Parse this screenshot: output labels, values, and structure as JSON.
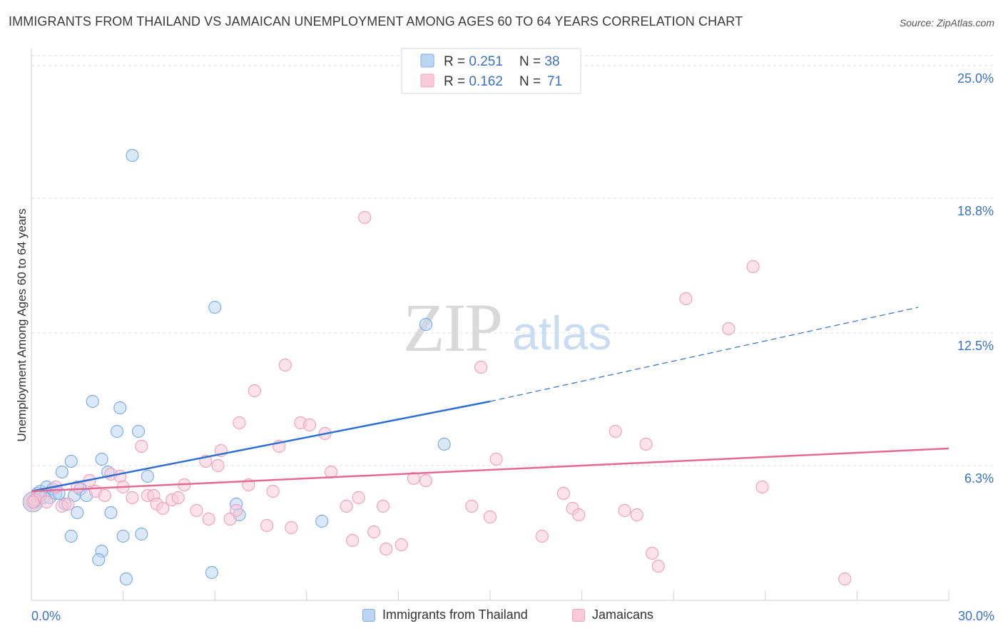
{
  "title": "IMMIGRANTS FROM THAILAND VS JAMAICAN UNEMPLOYMENT AMONG AGES 60 TO 64 YEARS CORRELATION CHART",
  "source": "Source: ZipAtlas.com",
  "watermark": {
    "zip": "ZIP",
    "atlas": "atlas"
  },
  "chart_data": {
    "type": "scatter",
    "xlabel": "",
    "ylabel": "Unemployment Among Ages 60 to 64 years",
    "xlim": [
      0,
      30
    ],
    "ylim": [
      0,
      25.8
    ],
    "x_tick_labels": [
      "0.0%",
      "30.0%"
    ],
    "y_ticks": [
      6.3,
      12.5,
      18.8,
      25.0
    ],
    "y_tick_labels": [
      "6.3%",
      "12.5%",
      "18.8%",
      "25.0%"
    ],
    "legend": {
      "position": "top-center",
      "entries": [
        {
          "r_label": "R = ",
          "r_value": "0.251",
          "n_label": "N = ",
          "n_value": "38"
        },
        {
          "r_label": "R = ",
          "r_value": "0.162",
          "n_label": "N = ",
          "n_value": "71"
        }
      ]
    },
    "series": [
      {
        "name": "Immigrants from Thailand",
        "color": "#7eaee6",
        "fill": "#bcd5f3",
        "line_color": "#2f6fcf",
        "trend": {
          "x0": 0.0,
          "y0": 5.1,
          "x1": 15.0,
          "y1": 9.3,
          "x_dash_end": 29.0,
          "y_dash_end": 13.7
        },
        "points": [
          [
            0.1,
            4.6
          ],
          [
            0.2,
            5.0
          ],
          [
            0.3,
            5.1
          ],
          [
            0.4,
            4.8
          ],
          [
            0.5,
            5.3
          ],
          [
            0.6,
            4.8
          ],
          [
            0.7,
            5.2
          ],
          [
            0.8,
            5.0
          ],
          [
            1.0,
            6.0
          ],
          [
            1.1,
            4.5
          ],
          [
            1.3,
            6.5
          ],
          [
            1.4,
            4.9
          ],
          [
            1.5,
            4.1
          ],
          [
            1.6,
            5.2
          ],
          [
            1.8,
            4.9
          ],
          [
            2.0,
            9.3
          ],
          [
            2.3,
            2.3
          ],
          [
            2.2,
            1.9
          ],
          [
            2.3,
            6.6
          ],
          [
            2.5,
            6.0
          ],
          [
            2.6,
            4.1
          ],
          [
            2.8,
            7.9
          ],
          [
            2.9,
            9.0
          ],
          [
            3.0,
            3.0
          ],
          [
            3.1,
            1.0
          ],
          [
            3.3,
            20.8
          ],
          [
            3.5,
            7.9
          ],
          [
            3.6,
            3.1
          ],
          [
            3.8,
            5.8
          ],
          [
            5.9,
            1.3
          ],
          [
            6.0,
            13.7
          ],
          [
            6.7,
            4.5
          ],
          [
            6.8,
            4.0
          ],
          [
            9.5,
            3.7
          ],
          [
            12.9,
            12.9
          ],
          [
            13.5,
            7.3
          ],
          [
            1.3,
            3.0
          ],
          [
            0.9,
            5.0
          ]
        ]
      },
      {
        "name": "Jamaicans",
        "color": "#f0a3bd",
        "fill": "#f8cbda",
        "line_color": "#e46a95",
        "trend": {
          "x0": 0.0,
          "y0": 5.1,
          "x1": 30.0,
          "y1": 7.1
        },
        "points": [
          [
            0.1,
            4.7
          ],
          [
            0.3,
            4.9
          ],
          [
            0.5,
            4.6
          ],
          [
            0.8,
            5.3
          ],
          [
            1.0,
            4.4
          ],
          [
            1.2,
            4.5
          ],
          [
            1.5,
            5.3
          ],
          [
            1.9,
            5.6
          ],
          [
            2.1,
            5.1
          ],
          [
            2.4,
            4.9
          ],
          [
            2.6,
            5.9
          ],
          [
            2.9,
            5.8
          ],
          [
            3.0,
            5.3
          ],
          [
            3.3,
            4.8
          ],
          [
            3.6,
            7.2
          ],
          [
            3.8,
            4.9
          ],
          [
            4.0,
            4.9
          ],
          [
            4.1,
            4.5
          ],
          [
            4.3,
            4.3
          ],
          [
            4.6,
            4.7
          ],
          [
            4.8,
            4.8
          ],
          [
            5.0,
            5.4
          ],
          [
            5.4,
            4.2
          ],
          [
            5.7,
            6.5
          ],
          [
            5.8,
            3.8
          ],
          [
            6.1,
            6.3
          ],
          [
            6.2,
            7.0
          ],
          [
            6.5,
            3.8
          ],
          [
            6.7,
            4.2
          ],
          [
            6.8,
            8.3
          ],
          [
            7.1,
            5.4
          ],
          [
            7.3,
            9.8
          ],
          [
            7.7,
            3.5
          ],
          [
            7.9,
            5.1
          ],
          [
            8.1,
            7.2
          ],
          [
            8.3,
            11.0
          ],
          [
            8.5,
            3.4
          ],
          [
            8.8,
            8.3
          ],
          [
            9.1,
            8.2
          ],
          [
            9.6,
            7.8
          ],
          [
            9.8,
            6.0
          ],
          [
            10.3,
            4.4
          ],
          [
            10.5,
            2.8
          ],
          [
            10.7,
            4.8
          ],
          [
            10.9,
            17.9
          ],
          [
            11.2,
            3.2
          ],
          [
            11.5,
            4.4
          ],
          [
            11.6,
            2.4
          ],
          [
            12.1,
            2.6
          ],
          [
            12.5,
            5.7
          ],
          [
            12.9,
            5.6
          ],
          [
            14.4,
            4.4
          ],
          [
            14.7,
            10.9
          ],
          [
            15.0,
            3.9
          ],
          [
            15.2,
            6.6
          ],
          [
            16.7,
            3.0
          ],
          [
            17.4,
            5.0
          ],
          [
            17.7,
            4.3
          ],
          [
            17.9,
            4.0
          ],
          [
            19.1,
            7.9
          ],
          [
            19.4,
            4.2
          ],
          [
            19.8,
            4.0
          ],
          [
            20.1,
            7.3
          ],
          [
            20.3,
            2.2
          ],
          [
            20.5,
            1.6
          ],
          [
            21.4,
            14.1
          ],
          [
            22.8,
            12.7
          ],
          [
            23.6,
            15.6
          ],
          [
            23.9,
            5.3
          ],
          [
            26.6,
            1.0
          ],
          [
            0.05,
            4.6
          ]
        ]
      }
    ]
  }
}
